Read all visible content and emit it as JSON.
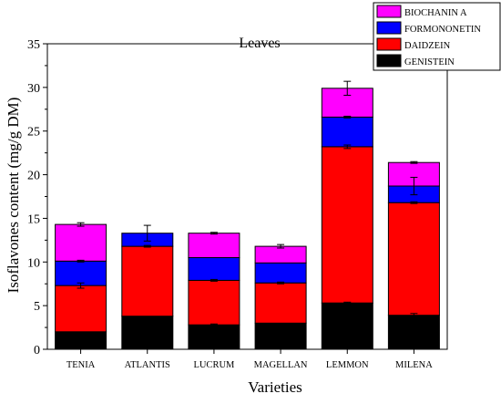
{
  "chart_data": {
    "type": "bar",
    "stacked": true,
    "title": "Leaves",
    "xlabel": "Varieties",
    "ylabel": "Isoflavones content (mg/g DM)",
    "ylim": [
      0,
      35
    ],
    "yticks": [
      0,
      5,
      10,
      15,
      20,
      25,
      30,
      35
    ],
    "grid": false,
    "legend_position": "top-right",
    "categories": [
      "TENIA",
      "ATLANTIS",
      "LUCRUM",
      "MAGELLAN",
      "LEMMON",
      "MILENA"
    ],
    "series": [
      {
        "name": "GENISTEIN",
        "color": "#000000",
        "values": [
          2.0,
          3.8,
          2.8,
          3.0,
          5.3,
          3.9
        ],
        "errors": [
          0.0,
          0.0,
          0.1,
          0.0,
          0.1,
          0.2
        ]
      },
      {
        "name": "DAIDZEIN",
        "color": "#ff0000",
        "values": [
          5.3,
          8.0,
          5.1,
          4.6,
          17.9,
          12.9
        ],
        "errors": [
          0.3,
          0.1,
          0.1,
          0.1,
          0.2,
          0.1
        ]
      },
      {
        "name": "FORMONONETIN",
        "color": "#0000ff",
        "values": [
          2.8,
          1.5,
          2.6,
          2.3,
          3.4,
          1.9
        ],
        "errors": [
          0.1,
          0.0,
          0.0,
          0.0,
          0.1,
          1.0
        ]
      },
      {
        "name": "BIOCHANIN A",
        "color": "#ff00ff",
        "values": [
          4.2,
          0.0,
          2.8,
          1.9,
          3.3,
          2.7
        ],
        "errors": [
          0.2,
          0.9,
          0.1,
          0.2,
          0.8,
          0.1
        ]
      }
    ]
  }
}
